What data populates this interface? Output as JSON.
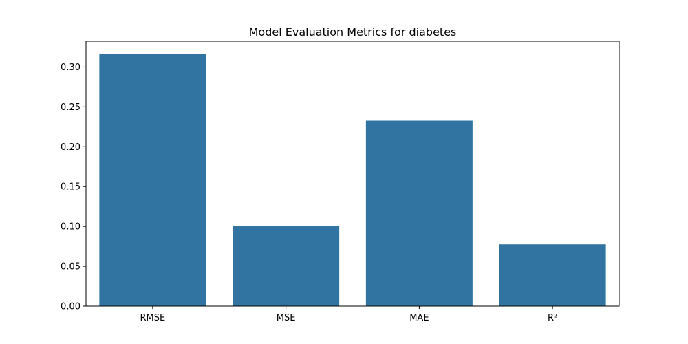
{
  "chart_data": {
    "type": "bar",
    "title": "Model Evaluation Metrics for diabetes",
    "xlabel": "",
    "ylabel": "",
    "categories": [
      "RMSE",
      "MSE",
      "MAE",
      "R²"
    ],
    "values": [
      0.3165,
      0.1002,
      0.2326,
      0.0775
    ],
    "ylim": [
      0,
      0.3323
    ],
    "yticks": [
      0.0,
      0.05,
      0.1,
      0.15,
      0.2,
      0.25,
      0.3
    ],
    "ytick_labels": [
      "0.00",
      "0.05",
      "0.10",
      "0.15",
      "0.20",
      "0.25",
      "0.30"
    ],
    "bar_color": "#3274a1",
    "grid": false,
    "legend": "none"
  }
}
